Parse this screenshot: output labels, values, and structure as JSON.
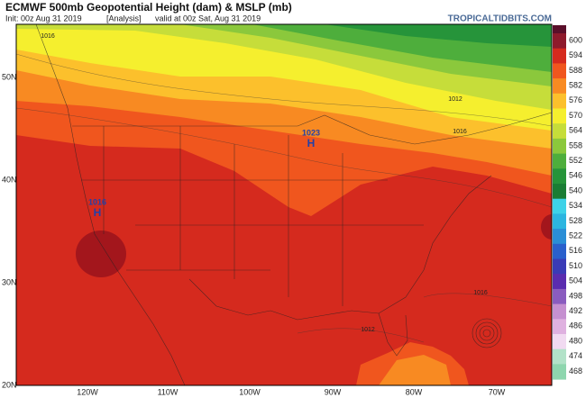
{
  "header": {
    "title": "ECMWF 500mb Geopotential Height (dam) & MSLP (mb)",
    "init": "Init: 00z Aug 31 2019",
    "analysis": "[Analysis]",
    "valid": "valid at 00z Sat, Aug 31 2019",
    "site": "TROPICALTIDBITS.COM"
  },
  "colorbar": {
    "labels": [
      "600",
      "594",
      "588",
      "582",
      "576",
      "570",
      "564",
      "558",
      "552",
      "546",
      "540",
      "534",
      "528",
      "522",
      "516",
      "510",
      "504",
      "498",
      "492",
      "486",
      "480",
      "474",
      "468"
    ]
  },
  "map": {
    "lat_labels": [
      "50N",
      "40N",
      "30N",
      "20N"
    ],
    "lon_labels": [
      "120W",
      "110W",
      "100W",
      "90W",
      "80W",
      "70W"
    ],
    "highs": [
      {
        "symbol": "H",
        "pressure": "1023"
      },
      {
        "symbol": "H",
        "pressure": "1016"
      }
    ],
    "contour_labels": [
      "1016",
      "1012",
      "1016",
      "1016",
      "1012"
    ]
  }
}
